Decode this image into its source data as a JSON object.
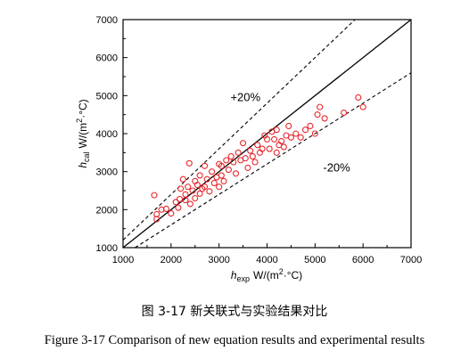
{
  "captions": {
    "chinese": "图 3-17  新关联式与实验结果对比",
    "english": "Figure 3-17 Comparison of new equation results and experimental results"
  },
  "chart_data": {
    "type": "scatter",
    "xlabel": {
      "symbol": "h",
      "subscript": "exp",
      "unit": "W/(m",
      "superscript": "2",
      "unit_end": "·°C)"
    },
    "ylabel": {
      "symbol": "h",
      "subscript": "cal",
      "unit": "W/(m",
      "superscript": "2",
      "unit_end": "·°C)"
    },
    "xlim": [
      1000,
      7000
    ],
    "ylim": [
      1000,
      7000
    ],
    "xticks": [
      "1000",
      "2000",
      "3000",
      "4000",
      "5000",
      "6000",
      "7000"
    ],
    "yticks": [
      "1000",
      "2000",
      "3000",
      "4000",
      "5000",
      "6000",
      "7000"
    ],
    "grid": false,
    "legend": "none",
    "marker_color": "#e8262b",
    "reference_lines": [
      {
        "type": "solid",
        "slope": 1.0
      },
      {
        "type": "dashed",
        "slope": 1.2
      },
      {
        "type": "dashed",
        "slope": 0.8
      }
    ],
    "annotations": [
      {
        "text": "+20%",
        "x": 3550,
        "y": 4850
      },
      {
        "text": "-20%",
        "x": 5450,
        "y": 3000
      }
    ],
    "series": [
      {
        "points": [
          [
            1650,
            2380
          ],
          [
            1700,
            1750
          ],
          [
            1700,
            1880
          ],
          [
            1800,
            2000
          ],
          [
            1900,
            2020
          ],
          [
            2000,
            1900
          ],
          [
            2100,
            2200
          ],
          [
            2150,
            2050
          ],
          [
            2180,
            2280
          ],
          [
            2200,
            2550
          ],
          [
            2250,
            2800
          ],
          [
            2300,
            2400
          ],
          [
            2300,
            2250
          ],
          [
            2350,
            2600
          ],
          [
            2380,
            3220
          ],
          [
            2400,
            2150
          ],
          [
            2450,
            2500
          ],
          [
            2500,
            2750
          ],
          [
            2500,
            2300
          ],
          [
            2550,
            2650
          ],
          [
            2600,
            2420
          ],
          [
            2600,
            2900
          ],
          [
            2650,
            2550
          ],
          [
            2700,
            3150
          ],
          [
            2700,
            2600
          ],
          [
            2750,
            2800
          ],
          [
            2800,
            2480
          ],
          [
            2850,
            3000
          ],
          [
            2900,
            2700
          ],
          [
            2950,
            2850
          ],
          [
            3000,
            3200
          ],
          [
            3000,
            2600
          ],
          [
            3050,
            2900
          ],
          [
            3050,
            3150
          ],
          [
            3100,
            2750
          ],
          [
            3150,
            3300
          ],
          [
            3200,
            3050
          ],
          [
            3250,
            3400
          ],
          [
            3300,
            3250
          ],
          [
            3350,
            2950
          ],
          [
            3400,
            3500
          ],
          [
            3450,
            3300
          ],
          [
            3500,
            3750
          ],
          [
            3550,
            3350
          ],
          [
            3600,
            3100
          ],
          [
            3650,
            3550
          ],
          [
            3700,
            3400
          ],
          [
            3750,
            3250
          ],
          [
            3800,
            3700
          ],
          [
            3850,
            3500
          ],
          [
            3900,
            3600
          ],
          [
            3950,
            3950
          ],
          [
            4000,
            3850
          ],
          [
            4050,
            3600
          ],
          [
            4100,
            4050
          ],
          [
            4150,
            3850
          ],
          [
            4200,
            4100
          ],
          [
            4200,
            3500
          ],
          [
            4250,
            3700
          ],
          [
            4300,
            3800
          ],
          [
            4350,
            3650
          ],
          [
            4400,
            3950
          ],
          [
            4450,
            4200
          ],
          [
            4500,
            3900
          ],
          [
            4600,
            4000
          ],
          [
            4700,
            3900
          ],
          [
            4800,
            4100
          ],
          [
            4900,
            4200
          ],
          [
            5000,
            4000
          ],
          [
            5050,
            4500
          ],
          [
            5100,
            4700
          ],
          [
            5200,
            4400
          ],
          [
            5600,
            4550
          ],
          [
            5900,
            4950
          ],
          [
            6000,
            4700
          ]
        ]
      }
    ]
  }
}
